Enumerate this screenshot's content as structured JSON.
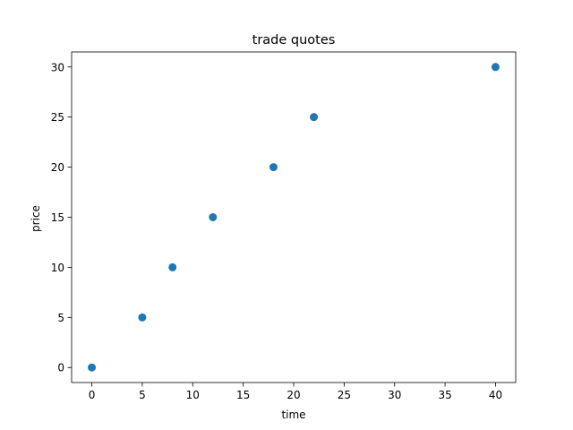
{
  "chart_data": {
    "type": "scatter",
    "title": "trade quotes",
    "xlabel": "time",
    "ylabel": "price",
    "xlim": [
      -2,
      42
    ],
    "ylim": [
      -1.5,
      31.5
    ],
    "xticks": [
      0,
      5,
      10,
      15,
      20,
      25,
      30,
      35,
      40
    ],
    "yticks": [
      0,
      5,
      10,
      15,
      20,
      25,
      30
    ],
    "grid": false,
    "series": [
      {
        "color": "#1f77b4",
        "points": [
          {
            "x": 0,
            "y": 0
          },
          {
            "x": 5,
            "y": 5
          },
          {
            "x": 8,
            "y": 10
          },
          {
            "x": 12,
            "y": 15
          },
          {
            "x": 18,
            "y": 20
          },
          {
            "x": 22,
            "y": 25
          },
          {
            "x": 40,
            "y": 30
          }
        ]
      }
    ]
  }
}
